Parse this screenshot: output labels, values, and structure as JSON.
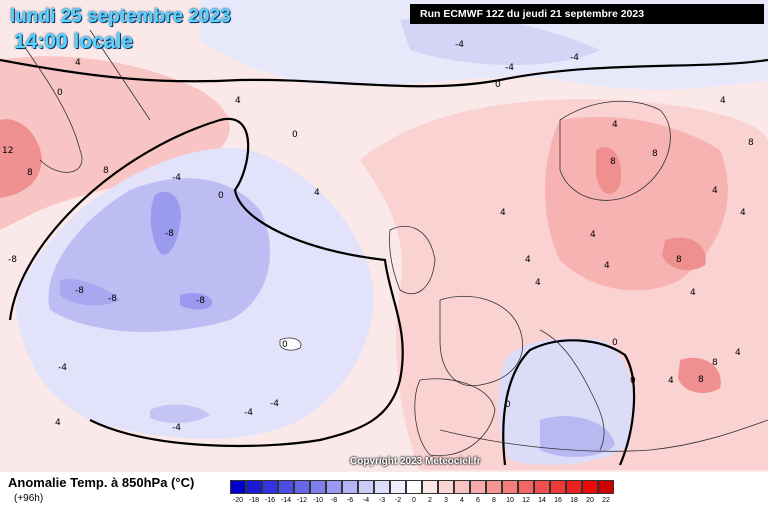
{
  "header": {
    "date": "lundi 25 septembre 2023",
    "time": "14:00 locale"
  },
  "run_info": "Run ECMWF 12Z du jeudi 21 septembre 2023",
  "copyright": "Copyright 2023 Meteociel.fr",
  "legend": {
    "title": "Anomalie Temp. à 850hPa (°C)",
    "subtitle": "(+96h)",
    "ticks": [
      "-20",
      "-18",
      "-16",
      "-14",
      "-12",
      "-10",
      "-8",
      "-6",
      "-4",
      "-3",
      "-2",
      "0",
      "2",
      "3",
      "4",
      "6",
      "8",
      "10",
      "12",
      "14",
      "16",
      "18",
      "20",
      "22"
    ],
    "colors": [
      "#0000cc",
      "#1a1ad9",
      "#3333e0",
      "#4d4de6",
      "#6666ea",
      "#7f7fee",
      "#9999f2",
      "#b3b3f6",
      "#ccccf9",
      "#ddddfb",
      "#eeeefd",
      "#ffffff",
      "#fde6e6",
      "#fcd4d4",
      "#fbc2c2",
      "#f9abab",
      "#f79494",
      "#f57d7d",
      "#f36666",
      "#f14f4f",
      "#ef3838",
      "#ed2121",
      "#eb0a0a",
      "#cc0000"
    ]
  },
  "map_labels": [
    "4",
    "0",
    "-4",
    "-4",
    "-4",
    "0",
    "4",
    "0",
    "4",
    "8",
    "12",
    "8",
    "-8",
    "-4",
    "0",
    "-8",
    "-8",
    "-8",
    "-8",
    "0",
    "4",
    "0",
    "4",
    "8",
    "8",
    "4",
    "8",
    "4",
    "4",
    "4",
    "8",
    "4",
    "0",
    "4",
    "4",
    "8",
    "8",
    "4",
    "0",
    "-4",
    "-4",
    "-4",
    "4",
    "-4",
    "4",
    "4"
  ],
  "colors": {
    "background": "#ffffff",
    "warm_light": "#fde2e2",
    "warm_mid": "#f8b8b8",
    "warm_strong": "#f08a8a",
    "cool_light": "#e4e4fb",
    "cool_mid": "#c4c4f4",
    "cool_strong": "#9a9aee",
    "coast": "#333333",
    "contour_zero": "#000000",
    "header_text": "#5ad0ff"
  }
}
